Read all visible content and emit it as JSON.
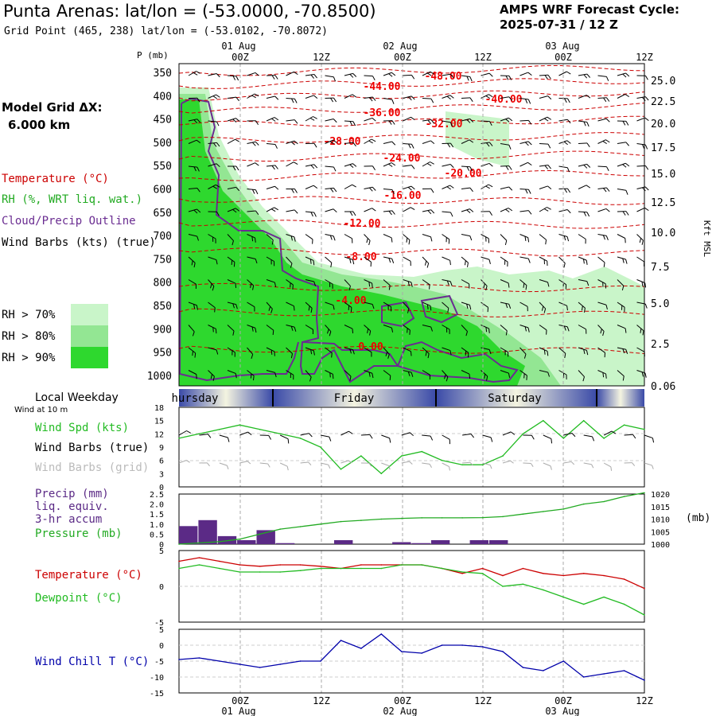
{
  "header": {
    "title": "Punta Arenas:  lat/lon = (-53.0000, -70.8500)",
    "subtitle": "Grid Point (465, 238) lat/lon = (-53.0102, -70.8072)",
    "cycle_line1": "AMPS WRF Forecast Cycle:",
    "cycle_line2": "2025-07-31 / 12  Z"
  },
  "left_panel": {
    "model_grid_line1": "Model Grid ΔX:",
    "model_grid_line2": "6.000 km",
    "legend": [
      {
        "label": "Temperature (°C)",
        "color": "#cc0000"
      },
      {
        "label": "RH (%, WRT liq. wat.)",
        "color": "#22aa22"
      },
      {
        "label": "Cloud/Precip Outline",
        "color": "#6a2c91"
      },
      {
        "label": "Wind Barbs (kts) (true)",
        "color": "#000000"
      }
    ],
    "rh_legend": [
      {
        "label": "RH > 70%",
        "color": "#c9f5c9"
      },
      {
        "label": "RH > 80%",
        "color": "#93e693"
      },
      {
        "label": "RH > 90%",
        "color": "#2ed82e"
      }
    ]
  },
  "colors": {
    "temp": "#cc0000",
    "rh70": "#c9f5c9",
    "rh80": "#93e693",
    "rh90": "#2ed82e",
    "cloud": "#6a2c91",
    "wind_spd": "#22bb22",
    "dewpoint": "#22bb22",
    "temperature": "#cc0000",
    "wind_chill": "#0000aa",
    "pressure": "#22aa22",
    "precip": "#5b2a86",
    "grid": "#999999"
  },
  "time_axis": {
    "top_dates": [
      "01 Aug",
      "02 Aug",
      "03 Aug"
    ],
    "tick_labels": [
      "00Z",
      "12Z",
      "00Z",
      "12Z",
      "00Z",
      "12Z"
    ],
    "bottom_dates": [
      "01 Aug",
      "02 Aug",
      "03 Aug"
    ],
    "weekday_title": "Local Weekday",
    "weekdays": [
      "hursday",
      "Friday",
      "Saturday"
    ],
    "wind_at": "Wind at 10 m"
  },
  "chart_data": [
    {
      "type": "heatmap",
      "panel": "cross-section",
      "ylabel": "P (mb)",
      "y_ticks": [
        "350",
        "400",
        "450",
        "500",
        "550",
        "600",
        "650",
        "700",
        "750",
        "800",
        "850",
        "900",
        "950",
        "1000"
      ],
      "right_axis_label": "Kft MSL",
      "right_ticks": [
        "25.0",
        "22.5",
        "20.0",
        "17.5",
        "15.0",
        "12.5",
        "10.0",
        "7.5",
        "5.0",
        "2.5",
        "0.06"
      ],
      "temperature_contour_labels": [
        "-48.00",
        "-44.00",
        "-40.00",
        "-36.00",
        "-32.00",
        "-28.00",
        "-24.00",
        "-20.00",
        "-16.00",
        "-12.00",
        "-8.00",
        "-4.00",
        "0.00"
      ]
    },
    {
      "type": "line",
      "panel": "wind",
      "series": [
        {
          "name": "Wind Spd (kts)",
          "values": [
            11,
            12,
            13,
            14,
            13,
            12,
            11,
            9,
            4,
            7,
            3,
            7,
            8,
            6,
            5,
            5,
            7,
            12,
            15,
            11,
            15,
            11,
            14,
            13
          ]
        }
      ],
      "legend": [
        "Wind Spd (kts)",
        "Wind Barbs (true)",
        "Wind Barbs (grid)"
      ],
      "y_ticks": [
        "0",
        "3",
        "6",
        "9",
        "12",
        "15",
        "18"
      ],
      "ylim": [
        0,
        18
      ]
    },
    {
      "type": "bar",
      "panel": "precip_pressure",
      "precip": [
        0.9,
        1.2,
        0.4,
        0.2,
        0.7,
        0.05,
        0,
        0,
        0.2,
        0,
        0,
        0.1,
        0.05,
        0.2,
        0,
        0.2,
        0.2,
        0,
        0,
        0,
        0,
        0,
        0,
        0
      ],
      "pressure": [
        1000,
        1000.5,
        1001,
        1002,
        1004,
        1006,
        1007,
        1008,
        1009,
        1009.5,
        1010,
        1010.3,
        1010.5,
        1010.5,
        1010.5,
        1010.6,
        1011,
        1012,
        1013,
        1014,
        1016,
        1017,
        1019,
        1020.5
      ],
      "legend": [
        "Precip (mm)",
        "liq. equiv.",
        "3-hr accum",
        "Pressure (mb)"
      ],
      "y_ticks_left": [
        "0",
        "0.5",
        "1.0",
        "1.5",
        "2.0",
        "2.5"
      ],
      "y_ticks_right": [
        "1000",
        "1005",
        "1010",
        "1015",
        "1020"
      ],
      "right_unit": "(mb)",
      "ylim_left": [
        0,
        2.5
      ],
      "ylim_right": [
        1000,
        1020
      ]
    },
    {
      "type": "line",
      "panel": "temp_dewpoint",
      "series": [
        {
          "name": "Temperature (°C)",
          "values": [
            3.5,
            4,
            3.5,
            3,
            2.8,
            3,
            3,
            2.8,
            2.5,
            3,
            3,
            3,
            3,
            2.5,
            1.8,
            2.5,
            1.5,
            2.5,
            1.8,
            1.5,
            1.8,
            1.5,
            1,
            -0.3
          ]
        },
        {
          "name": "Dewpoint (°C)",
          "values": [
            2.5,
            3,
            2.5,
            2,
            2,
            2,
            2.2,
            2.5,
            2.5,
            2.5,
            2.5,
            3,
            3,
            2.5,
            2,
            1.8,
            0,
            0.3,
            -0.5,
            -1.5,
            -2.5,
            -1.5,
            -2.5,
            -4
          ]
        }
      ],
      "y_ticks": [
        "5",
        "0",
        "-5"
      ],
      "ylim": [
        -5,
        5
      ]
    },
    {
      "type": "line",
      "panel": "wind_chill",
      "series": [
        {
          "name": "Wind Chill T (°C)",
          "values": [
            -4.5,
            -4,
            -5,
            -6,
            -7,
            -6,
            -5,
            -5,
            1.5,
            -1,
            3.5,
            -2,
            -2.5,
            0,
            0,
            -0.5,
            -2,
            -7,
            -8,
            -5,
            -10,
            -9,
            -8,
            -11
          ]
        }
      ],
      "y_ticks": [
        "5",
        "0",
        "-5",
        "-10",
        "-15"
      ],
      "ylim": [
        -15,
        5
      ]
    }
  ]
}
